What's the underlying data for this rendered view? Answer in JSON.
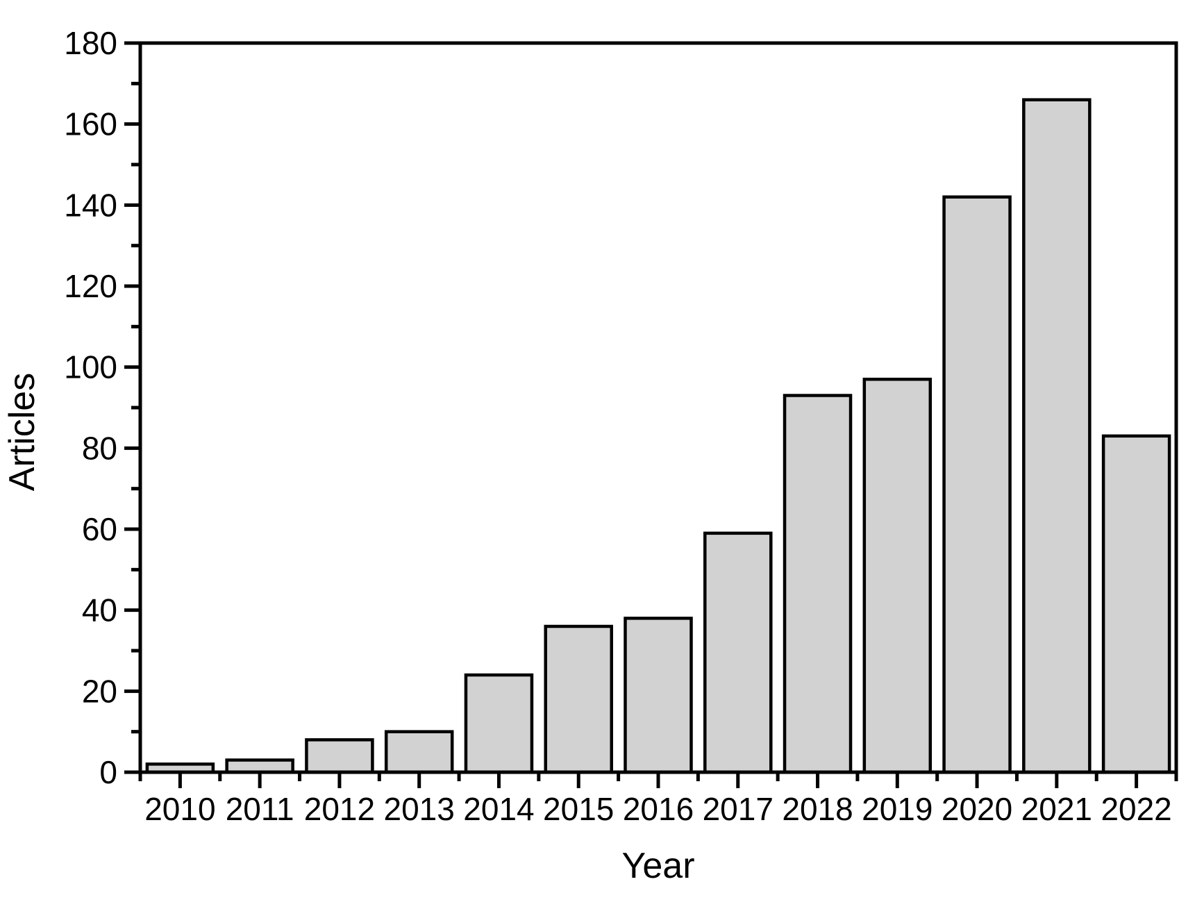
{
  "figure": {
    "background_color": "#ffffff",
    "text_color": "#000000"
  },
  "chart_data": {
    "type": "bar",
    "title": "",
    "xlabel": "Year",
    "ylabel": "Articles",
    "categories": [
      "2010",
      "2011",
      "2012",
      "2013",
      "2014",
      "2015",
      "2016",
      "2017",
      "2018",
      "2019",
      "2020",
      "2021",
      "2022"
    ],
    "values": [
      2,
      3,
      8,
      10,
      24,
      36,
      38,
      59,
      93,
      97,
      142,
      166,
      83
    ],
    "ylim": [
      0,
      180
    ],
    "y_major_ticks": [
      0,
      20,
      40,
      60,
      80,
      100,
      120,
      140,
      160,
      180
    ],
    "y_minor_tick_step": 10,
    "grid": false,
    "legend": false,
    "legend_position": "none",
    "bar_fill_color": "#d2d2d2",
    "bar_border_color": "#000000",
    "axis_color": "#000000"
  }
}
